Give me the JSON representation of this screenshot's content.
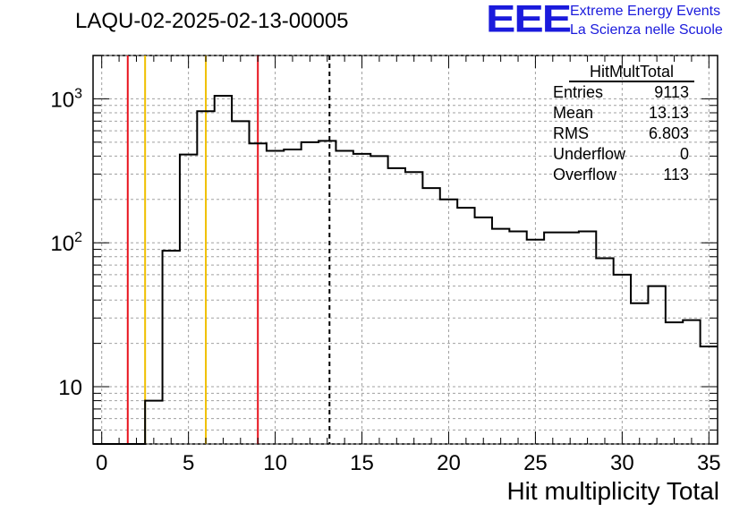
{
  "header": {
    "title": "LAQU-02-2025-02-13-00005",
    "logo_text": "EEE",
    "logo_line1": "Extreme Energy Events",
    "logo_line2": "La Scienza nelle Scuole"
  },
  "stats": {
    "title": "HitMultTotal",
    "rows": [
      {
        "label": "Entries",
        "value": "9113"
      },
      {
        "label": "Mean",
        "value": "13.13"
      },
      {
        "label": "RMS",
        "value": "6.803"
      },
      {
        "label": "Underflow",
        "value": "0"
      },
      {
        "label": "Overflow",
        "value": "113"
      }
    ]
  },
  "colors": {
    "red": "#e8141e",
    "yellow": "#f0c000",
    "grid": "#a0a0a0",
    "hist": "#000000"
  },
  "chart_data": {
    "type": "histogram",
    "xlabel": "Hit multiplicity Total",
    "ylabel": "",
    "xlim": [
      -0.5,
      35.5
    ],
    "ylim": [
      4,
      2000
    ],
    "yscale": "log",
    "grid": true,
    "bin_width": 1,
    "bin_edges_start": -0.5,
    "values": [
      0,
      0,
      0,
      8,
      88,
      410,
      820,
      1050,
      700,
      490,
      435,
      445,
      500,
      510,
      435,
      415,
      400,
      330,
      310,
      240,
      200,
      175,
      150,
      125,
      120,
      105,
      118,
      118,
      120,
      78,
      60,
      38,
      50,
      28,
      29,
      19
    ],
    "x_ticks": [
      0,
      5,
      10,
      15,
      20,
      25,
      30,
      35
    ],
    "y_tick_labels": [
      {
        "value": 10,
        "label": "10"
      },
      {
        "value": 100,
        "label": "10^2"
      },
      {
        "value": 1000,
        "label": "10^3"
      }
    ],
    "vertical_lines": [
      {
        "x": 1.5,
        "color": "red",
        "style": "solid"
      },
      {
        "x": 2.5,
        "color": "yellow",
        "style": "solid"
      },
      {
        "x": 6.0,
        "color": "yellow",
        "style": "solid"
      },
      {
        "x": 9.0,
        "color": "red",
        "style": "solid"
      },
      {
        "x": 13.13,
        "color": "black",
        "style": "dashed"
      }
    ]
  }
}
